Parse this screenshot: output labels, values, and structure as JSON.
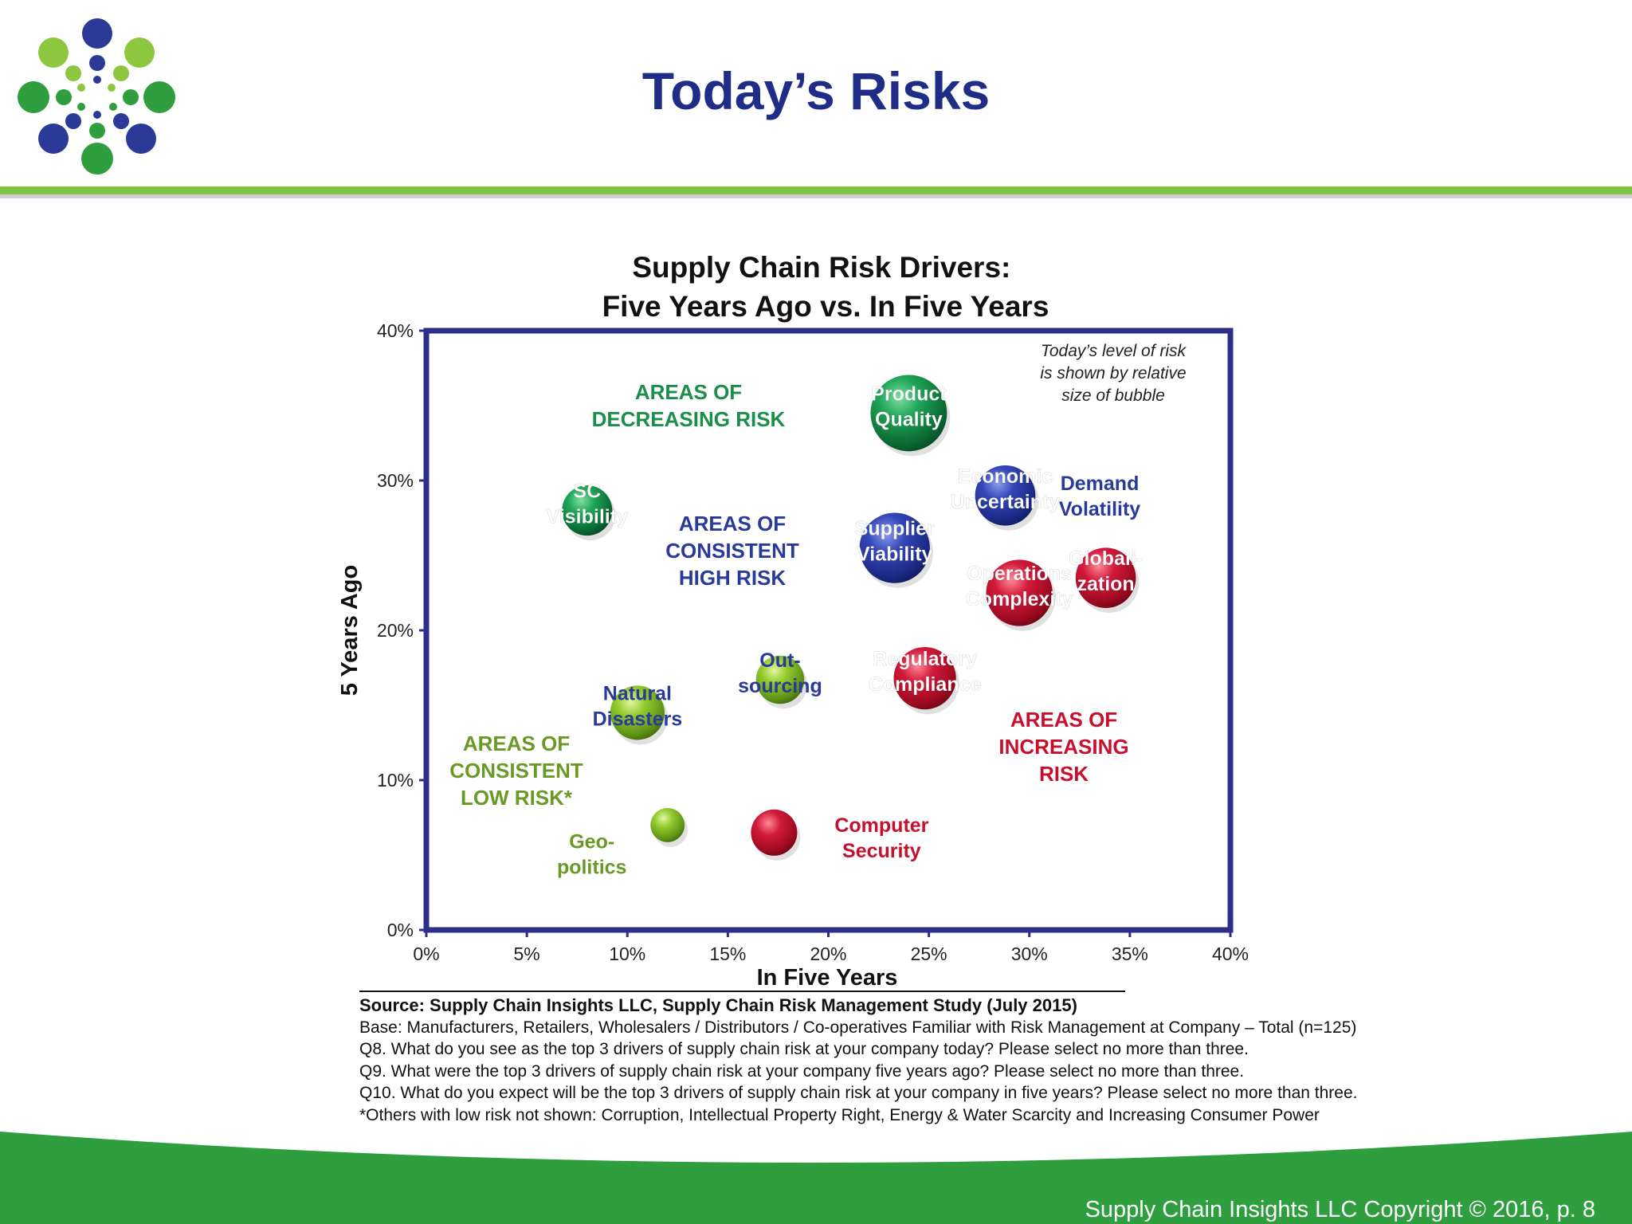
{
  "slide": {
    "title": "Today’s Risks",
    "copyright": "Supply Chain Insights LLC Copyright © 2016, p. 8"
  },
  "colors": {
    "title_blue": "#1f2d86",
    "accent_green": "#7dc242",
    "footer_green": "#2e9e3e",
    "frame_navy": "#2b2f8a",
    "zone_green": "#1a8f4a",
    "zone_blue": "#2a3a9a",
    "zone_red": "#c8102e",
    "zone_lightgreen": "#6a9a25"
  },
  "chart_data": {
    "type": "scatter",
    "title": "Supply Chain Risk Drivers:\nFive Years Ago vs. In Five Years",
    "xlabel": "In Five Years",
    "ylabel": "5 Years Ago",
    "xlim": [
      0,
      40
    ],
    "ylim": [
      0,
      40
    ],
    "x_ticks": [
      "0%",
      "5%",
      "10%",
      "15%",
      "20%",
      "25%",
      "30%",
      "35%",
      "40%"
    ],
    "y_ticks": [
      "0%",
      "10%",
      "20%",
      "30%",
      "40%"
    ],
    "bubble_note": "Today’s level of risk\nis shown by relative\nsize of bubble",
    "zone_labels": [
      {
        "text": "AREAS OF\nDECREASING RISK",
        "color": "#1a8f4a"
      },
      {
        "text": "AREAS OF\nCONSISTENT\nHIGH RISK",
        "color": "#2a3a9a"
      },
      {
        "text": "AREAS OF\nINCREASING\nRISK",
        "color": "#c8102e"
      },
      {
        "text": "AREAS OF\nCONSISTENT\nLOW RISK*",
        "color": "#6a9a25"
      }
    ],
    "points": [
      {
        "label": "Product\nQuality",
        "x": 24.0,
        "y": 34.5,
        "size": 3.8,
        "color": "green"
      },
      {
        "label": "SC\nVisibility",
        "x": 8.0,
        "y": 28.0,
        "size": 2.5,
        "color": "green"
      },
      {
        "label": "Economic\nUncertainty",
        "x": 28.8,
        "y": 29.0,
        "size": 3.0,
        "color": "blue"
      },
      {
        "label": "Supplier\nViability",
        "x": 23.3,
        "y": 25.5,
        "size": 3.5,
        "color": "blue"
      },
      {
        "label": "Globali-\nzation",
        "x": 33.8,
        "y": 23.5,
        "size": 3.0,
        "color": "red"
      },
      {
        "label": "Operations\nComplexity",
        "x": 29.5,
        "y": 22.5,
        "size": 3.3,
        "color": "red"
      },
      {
        "label": "Regulatory\nCompliance",
        "x": 24.8,
        "y": 16.8,
        "size": 3.1,
        "color": "red"
      },
      {
        "label": "Out-\nsourcing",
        "x": 17.6,
        "y": 16.7,
        "size": 2.4,
        "color": "lightgreen"
      },
      {
        "label": "Natural\nDisasters",
        "x": 10.5,
        "y": 14.5,
        "size": 2.7,
        "color": "lightgreen"
      },
      {
        "label": "Geo-\npolitics",
        "x": 12.0,
        "y": 7.0,
        "size": 1.7,
        "color": "lightgreen"
      },
      {
        "label": "Computer\nSecurity",
        "x": 17.3,
        "y": 6.5,
        "size": 2.3,
        "color": "red"
      },
      {
        "label": "Demand\nVolatility",
        "x": 33.5,
        "y": 28.5,
        "size": 0,
        "color": "blue"
      }
    ],
    "grid": false,
    "legend": "none"
  },
  "notes": [
    "Source:  Supply Chain Insights LLC, Supply Chain Risk Management Study (July 2015)",
    "Base:  Manufacturers, Retailers, Wholesalers / Distributors / Co-operatives Familiar with Risk Management at Company – Total (n=125)",
    "Q8. What do you see as the top 3 drivers of supply chain risk at your company today?  Please select no more than three.",
    "Q9. What were the top 3 drivers of supply chain risk at your company five years ago?  Please select no more than three.",
    "Q10. What do you expect will be the top 3 drivers of supply chain risk at your company in five years?  Please select no more than three.",
    "*Others with low risk not shown:  Corruption, Intellectual Property Right, Energy & Water Scarcity and Increasing Consumer Power"
  ]
}
